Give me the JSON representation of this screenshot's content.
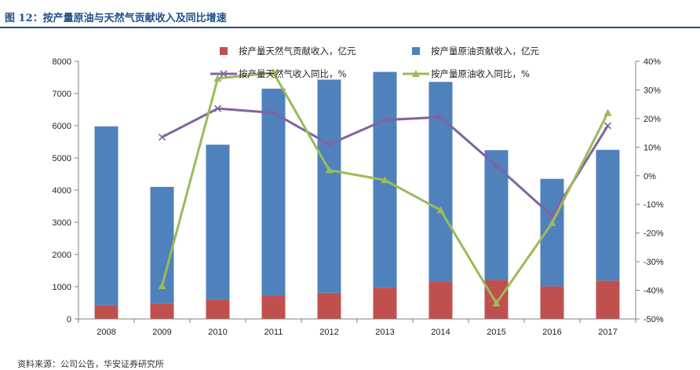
{
  "figure": {
    "title": "图 12：按产量原油与天然气贡献收入及同比增速",
    "source": "资料来源：公司公告，华安证券研究所"
  },
  "colors": {
    "gas_bar": "#c0504d",
    "oil_bar": "#4f81bd",
    "gas_line": "#8064a2",
    "oil_line": "#9bbb59",
    "axis": "#808080",
    "title": "#1f4e8c"
  },
  "chart_data": {
    "type": "bar",
    "stacked": true,
    "categories": [
      "2008",
      "2009",
      "2010",
      "2011",
      "2012",
      "2013",
      "2014",
      "2015",
      "2016",
      "2017"
    ],
    "series": [
      {
        "name": "按产量天然气贡献收入，亿元",
        "kind": "bar",
        "axis": "left",
        "values": [
          420,
          480,
          600,
          730,
          810,
          970,
          1160,
          1210,
          1010,
          1190
        ]
      },
      {
        "name": "按产量原油贡献收入，亿元",
        "kind": "bar",
        "axis": "left",
        "values": [
          5560,
          3620,
          4810,
          6420,
          6620,
          6700,
          6200,
          4030,
          3340,
          4060
        ]
      },
      {
        "name": "按产量天然气收入同比，%",
        "kind": "line",
        "axis": "right",
        "marker": "x",
        "values": [
          null,
          13.5,
          23.5,
          22.0,
          11.0,
          19.5,
          20.5,
          3.5,
          -14.0,
          17.5
        ]
      },
      {
        "name": "按产量原油收入同比，%",
        "kind": "line",
        "axis": "right",
        "marker": "triangle",
        "values": [
          null,
          -38.5,
          34.0,
          36.0,
          2.0,
          -1.5,
          -12.0,
          -44.5,
          -16.5,
          22.0
        ]
      }
    ],
    "y_left": {
      "min": 0,
      "max": 8000,
      "step": 1000,
      "ticks": [
        "0",
        "1000",
        "2000",
        "3000",
        "4000",
        "5000",
        "6000",
        "7000",
        "8000"
      ]
    },
    "y_right": {
      "min": -50,
      "max": 40,
      "step": 10,
      "ticks": [
        "-50%",
        "-40%",
        "-30%",
        "-20%",
        "-10%",
        "0%",
        "10%",
        "20%",
        "30%",
        "40%"
      ]
    },
    "legend_position": "top",
    "grid": false
  }
}
